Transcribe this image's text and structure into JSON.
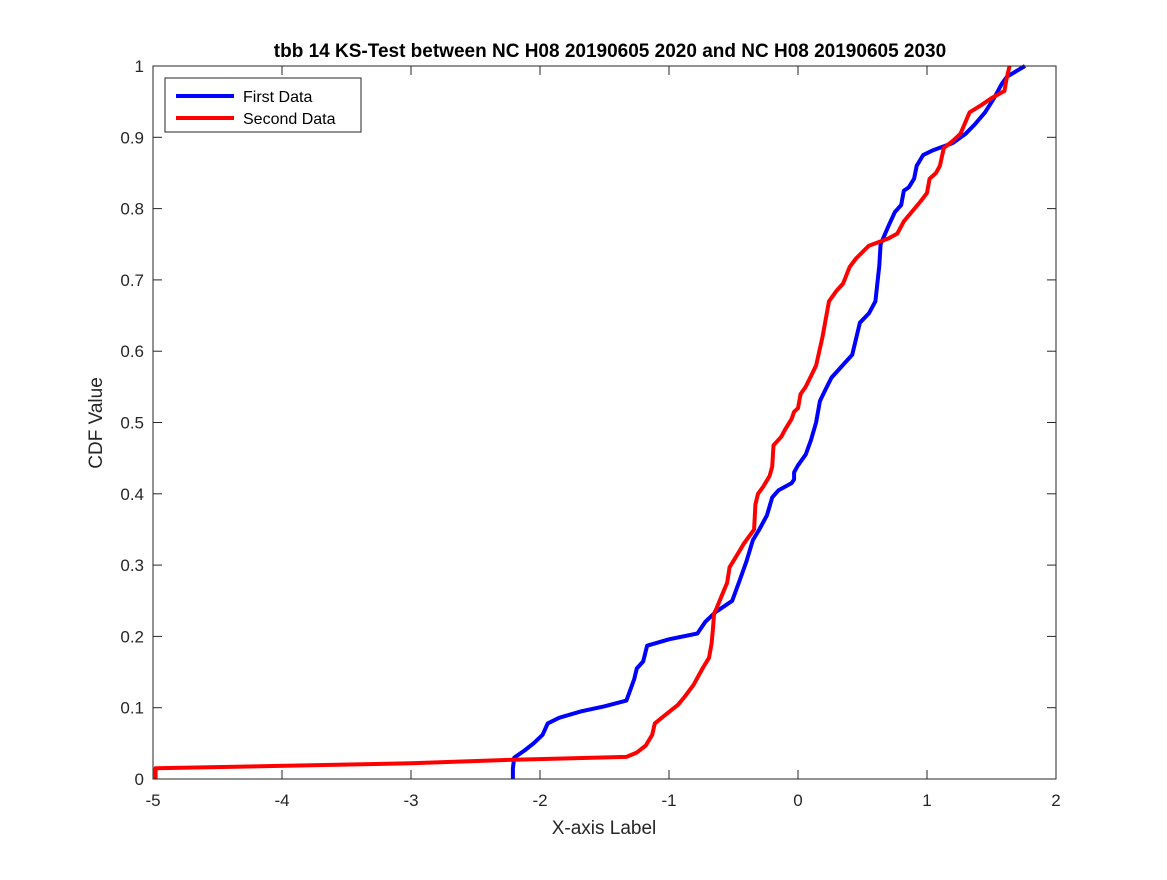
{
  "chart_data": {
    "type": "line",
    "title": "tbb 14 KS-Test between NC H08 20190605 2020 and NC H08 20190605 2030",
    "xlabel": "X-axis Label",
    "ylabel": "CDF Value",
    "xlim": [
      -5,
      2
    ],
    "ylim": [
      0,
      1
    ],
    "x_ticks": [
      -5,
      -4,
      -3,
      -2,
      -1,
      0,
      1,
      2
    ],
    "y_ticks": [
      0,
      0.1,
      0.2,
      0.3,
      0.4,
      0.5,
      0.6,
      0.7,
      0.8,
      0.9,
      1
    ],
    "x_tick_labels": [
      "-5",
      "-4",
      "-3",
      "-2",
      "-1",
      "0",
      "1",
      "2"
    ],
    "y_tick_labels": [
      "0",
      "0.1",
      "0.2",
      "0.3",
      "0.4",
      "0.5",
      "0.6",
      "0.7",
      "0.8",
      "0.9",
      "1"
    ],
    "grid": false,
    "legend_position": "top-left",
    "series": [
      {
        "name": "First Data",
        "color": "#0000ff",
        "points": [
          [
            -2.21,
            0.0
          ],
          [
            -2.21,
            0.015
          ],
          [
            -2.2,
            0.03
          ],
          [
            -2.12,
            0.04
          ],
          [
            -2.05,
            0.05
          ],
          [
            -1.98,
            0.062
          ],
          [
            -1.94,
            0.078
          ],
          [
            -1.85,
            0.086
          ],
          [
            -1.68,
            0.095
          ],
          [
            -1.5,
            0.102
          ],
          [
            -1.33,
            0.11
          ],
          [
            -1.27,
            0.14
          ],
          [
            -1.25,
            0.155
          ],
          [
            -1.2,
            0.165
          ],
          [
            -1.17,
            0.187
          ],
          [
            -1.0,
            0.196
          ],
          [
            -0.78,
            0.204
          ],
          [
            -0.72,
            0.22
          ],
          [
            -0.64,
            0.234
          ],
          [
            -0.55,
            0.245
          ],
          [
            -0.51,
            0.25
          ],
          [
            -0.45,
            0.28
          ],
          [
            -0.4,
            0.305
          ],
          [
            -0.35,
            0.335
          ],
          [
            -0.3,
            0.35
          ],
          [
            -0.24,
            0.37
          ],
          [
            -0.2,
            0.395
          ],
          [
            -0.15,
            0.405
          ],
          [
            -0.05,
            0.415
          ],
          [
            -0.03,
            0.42
          ],
          [
            -0.03,
            0.43
          ],
          [
            0.0,
            0.44
          ],
          [
            0.06,
            0.455
          ],
          [
            0.1,
            0.475
          ],
          [
            0.14,
            0.5
          ],
          [
            0.17,
            0.53
          ],
          [
            0.21,
            0.545
          ],
          [
            0.26,
            0.563
          ],
          [
            0.38,
            0.587
          ],
          [
            0.42,
            0.595
          ],
          [
            0.48,
            0.64
          ],
          [
            0.55,
            0.653
          ],
          [
            0.6,
            0.67
          ],
          [
            0.63,
            0.72
          ],
          [
            0.64,
            0.75
          ],
          [
            0.7,
            0.775
          ],
          [
            0.75,
            0.795
          ],
          [
            0.8,
            0.805
          ],
          [
            0.82,
            0.825
          ],
          [
            0.86,
            0.83
          ],
          [
            0.9,
            0.842
          ],
          [
            0.92,
            0.86
          ],
          [
            0.97,
            0.875
          ],
          [
            1.05,
            0.882
          ],
          [
            1.2,
            0.892
          ],
          [
            1.3,
            0.905
          ],
          [
            1.37,
            0.918
          ],
          [
            1.45,
            0.935
          ],
          [
            1.52,
            0.955
          ],
          [
            1.58,
            0.975
          ],
          [
            1.62,
            0.985
          ],
          [
            1.76,
            1.0
          ]
        ]
      },
      {
        "name": "Second Data",
        "color": "#ff0000",
        "points": [
          [
            -4.98,
            0.0
          ],
          [
            -4.98,
            0.015
          ],
          [
            -3.0,
            0.022
          ],
          [
            -2.2,
            0.027
          ],
          [
            -1.33,
            0.031
          ],
          [
            -1.25,
            0.037
          ],
          [
            -1.18,
            0.047
          ],
          [
            -1.13,
            0.062
          ],
          [
            -1.11,
            0.078
          ],
          [
            -1.02,
            0.091
          ],
          [
            -0.93,
            0.104
          ],
          [
            -0.88,
            0.115
          ],
          [
            -0.81,
            0.132
          ],
          [
            -0.74,
            0.155
          ],
          [
            -0.69,
            0.17
          ],
          [
            -0.68,
            0.18
          ],
          [
            -0.67,
            0.19
          ],
          [
            -0.66,
            0.21
          ],
          [
            -0.65,
            0.232
          ],
          [
            -0.63,
            0.24
          ],
          [
            -0.58,
            0.262
          ],
          [
            -0.55,
            0.275
          ],
          [
            -0.53,
            0.297
          ],
          [
            -0.46,
            0.318
          ],
          [
            -0.42,
            0.33
          ],
          [
            -0.34,
            0.35
          ],
          [
            -0.33,
            0.385
          ],
          [
            -0.31,
            0.4
          ],
          [
            -0.27,
            0.41
          ],
          [
            -0.22,
            0.425
          ],
          [
            -0.2,
            0.438
          ],
          [
            -0.19,
            0.468
          ],
          [
            -0.13,
            0.48
          ],
          [
            -0.1,
            0.49
          ],
          [
            -0.05,
            0.505
          ],
          [
            -0.03,
            0.515
          ],
          [
            0.0,
            0.52
          ],
          [
            0.02,
            0.54
          ],
          [
            0.06,
            0.55
          ],
          [
            0.1,
            0.565
          ],
          [
            0.14,
            0.58
          ],
          [
            0.19,
            0.62
          ],
          [
            0.24,
            0.67
          ],
          [
            0.3,
            0.685
          ],
          [
            0.35,
            0.695
          ],
          [
            0.4,
            0.718
          ],
          [
            0.45,
            0.73
          ],
          [
            0.55,
            0.748
          ],
          [
            0.7,
            0.758
          ],
          [
            0.77,
            0.765
          ],
          [
            0.82,
            0.782
          ],
          [
            0.95,
            0.81
          ],
          [
            1.0,
            0.822
          ],
          [
            1.02,
            0.842
          ],
          [
            1.07,
            0.85
          ],
          [
            1.1,
            0.86
          ],
          [
            1.13,
            0.885
          ],
          [
            1.2,
            0.895
          ],
          [
            1.26,
            0.905
          ],
          [
            1.33,
            0.935
          ],
          [
            1.42,
            0.945
          ],
          [
            1.5,
            0.955
          ],
          [
            1.6,
            0.965
          ],
          [
            1.62,
            0.985
          ],
          [
            1.64,
            1.0
          ]
        ]
      }
    ]
  }
}
